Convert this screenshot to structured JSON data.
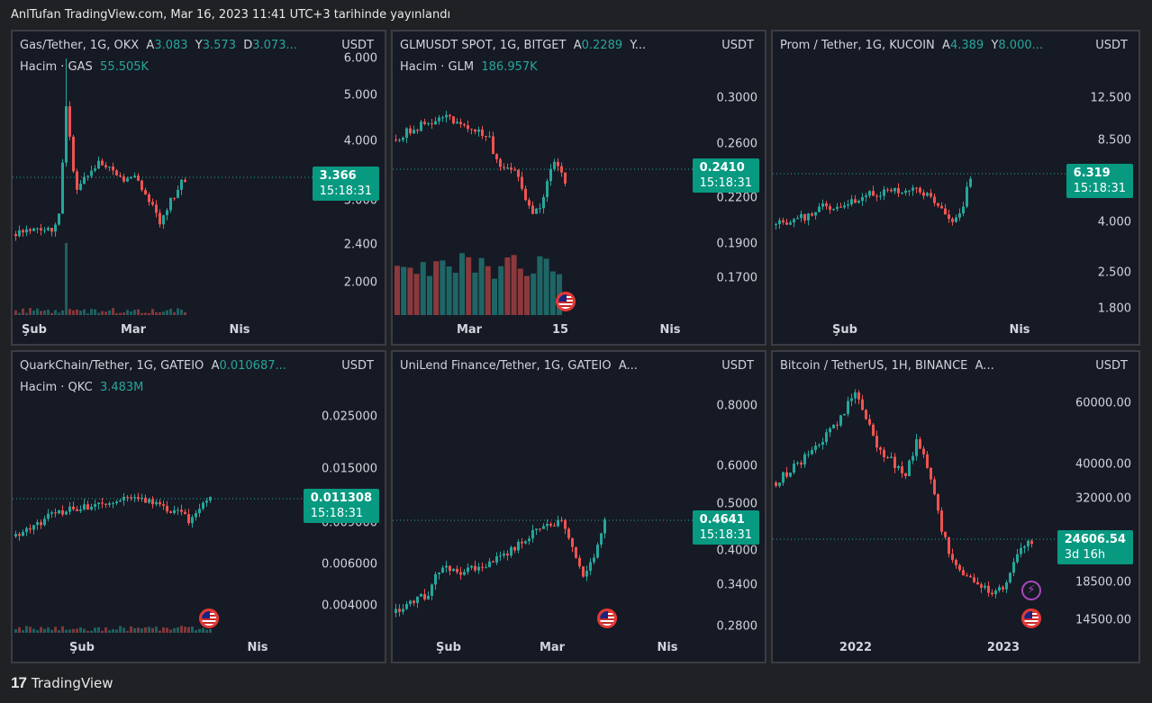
{
  "header": {
    "title": "AnlTufan TradingView.com, Mar 16, 2023 11:41 UTC+3 tarihinde yayınlandı"
  },
  "footer": {
    "brand": "TradingView",
    "logo": "17"
  },
  "colors": {
    "up": "#26a69a",
    "down": "#ef5350",
    "accent": "#089981",
    "panel_bg": "#161a25",
    "page_bg": "#202124"
  },
  "panels": [
    {
      "legend": {
        "title": "Gas/Tether, 1G, OKX",
        "o_label": "A",
        "o_val": "3.083",
        "h_label": "Y",
        "h_val": "3.573",
        "l_label": "D",
        "l_val": "3.073..."
      },
      "volume": {
        "label": "Hacim · GAS",
        "value": "55.505K"
      },
      "unit": "USDT",
      "y_ticks": [
        "6.000",
        "5.000",
        "4.000",
        "3.000",
        "2.400",
        "2.000"
      ],
      "x_ticks": [
        "Şub",
        "Mar",
        "Nis"
      ],
      "price": "3.366",
      "countdown": "15:18:31"
    },
    {
      "legend": {
        "title": "GLMUSDT SPOT, 1G, BITGET",
        "o_label": "A",
        "o_val": "0.2289",
        "h_label": "Y...",
        "h_val": "",
        "l_label": "",
        "l_val": ""
      },
      "volume": {
        "label": "Hacim · GLM",
        "value": "186.957K"
      },
      "unit": "USDT",
      "y_ticks": [
        "0.3000",
        "0.2600",
        "0.2200",
        "0.1900",
        "0.1700"
      ],
      "x_ticks": [
        "Mar",
        "15",
        "Nis"
      ],
      "price": "0.2410",
      "countdown": "15:18:31"
    },
    {
      "legend": {
        "title": "Prom / Tether, 1G, KUCOIN",
        "o_label": "A",
        "o_val": "4.389",
        "h_label": "Y",
        "h_val": "8.000...",
        "l_label": "",
        "l_val": ""
      },
      "volume": {
        "label": "",
        "value": ""
      },
      "unit": "USDT",
      "y_ticks": [
        "12.500",
        "8.500",
        "4.000",
        "2.500",
        "1.800"
      ],
      "x_ticks": [
        "Şub",
        "Nis"
      ],
      "price": "6.319",
      "countdown": "15:18:31"
    },
    {
      "legend": {
        "title": "QuarkChain/Tether, 1G, GATEIO",
        "o_label": "A",
        "o_val": "0.010687...",
        "h_label": "",
        "h_val": "",
        "l_label": "",
        "l_val": ""
      },
      "volume": {
        "label": "Hacim · QKC",
        "value": "3.483M"
      },
      "unit": "USDT",
      "y_ticks": [
        "0.025000",
        "0.015000",
        "0.009000",
        "0.006000",
        "0.004000"
      ],
      "x_ticks": [
        "Şub",
        "Nis"
      ],
      "price": "0.011308",
      "countdown": "15:18:31"
    },
    {
      "legend": {
        "title": "UniLend Finance/Tether, 1G, GATEIO",
        "o_label": "A...",
        "o_val": "",
        "h_label": "",
        "h_val": "",
        "l_label": "",
        "l_val": ""
      },
      "volume": {
        "label": "",
        "value": ""
      },
      "unit": "USDT",
      "y_ticks": [
        "0.8000",
        "0.6000",
        "0.5000",
        "0.4000",
        "0.3400",
        "0.2800"
      ],
      "x_ticks": [
        "Şub",
        "Mar",
        "Nis"
      ],
      "price": "0.4641",
      "countdown": "15:18:31"
    },
    {
      "legend": {
        "title": "Bitcoin / TetherUS, 1H, BINANCE",
        "o_label": "A...",
        "o_val": "",
        "h_label": "",
        "h_val": "",
        "l_label": "",
        "l_val": ""
      },
      "volume": {
        "label": "",
        "value": ""
      },
      "unit": "USDT",
      "y_ticks": [
        "60000.00",
        "40000.00",
        "32000.00",
        "18500.00",
        "14500.00"
      ],
      "x_ticks": [
        "2022",
        "2023"
      ],
      "price": "24606.54",
      "countdown": "3d 16h"
    }
  ]
}
